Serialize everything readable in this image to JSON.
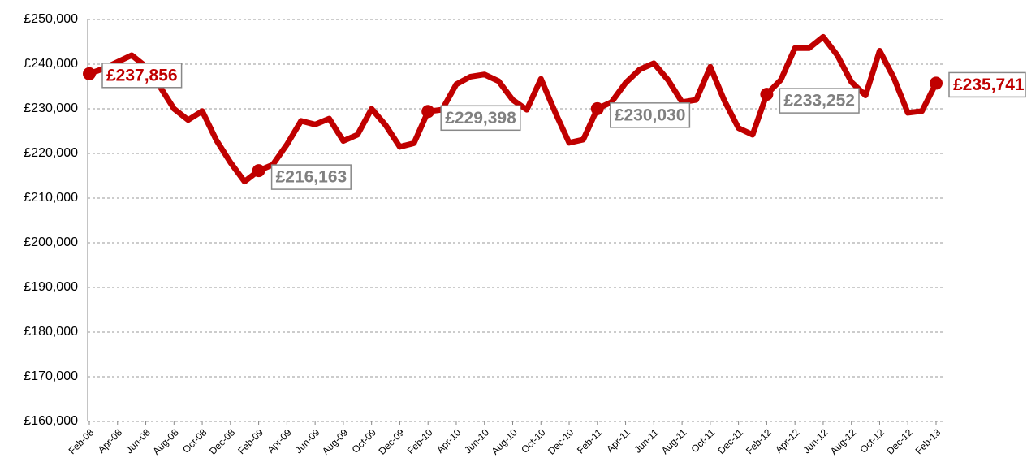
{
  "chart_data": {
    "type": "line",
    "categories": [
      "Feb-08",
      null,
      "Apr-08",
      null,
      "Jun-08",
      null,
      "Aug-08",
      null,
      "Oct-08",
      null,
      "Dec-08",
      null,
      "Feb-09",
      null,
      "Apr-09",
      null,
      "Jun-09",
      null,
      "Aug-09",
      null,
      "Oct-09",
      null,
      "Dec-09",
      null,
      "Feb-10",
      null,
      "Apr-10",
      null,
      "Jun-10",
      null,
      "Aug-10",
      null,
      "Oct-10",
      null,
      "Dec-10",
      null,
      "Feb-11",
      null,
      "Apr-11",
      null,
      "Jun-11",
      null,
      "Aug-11",
      null,
      "Oct-11",
      null,
      "Dec-11",
      null,
      "Feb-12",
      null,
      "Apr-12",
      null,
      "Jun-12",
      null,
      "Aug-12",
      null,
      "Oct-12",
      null,
      "Dec-12",
      null,
      "Feb-13"
    ],
    "series": [
      {
        "color": "#c00000",
        "values": [
          237856,
          239000,
          240500,
          242000,
          239500,
          235000,
          230000,
          227500,
          229500,
          223000,
          218000,
          213700,
          216163,
          217500,
          222000,
          227300,
          226500,
          227800,
          222800,
          224200,
          230000,
          226300,
          221500,
          222300,
          229398,
          229800,
          235500,
          237200,
          237700,
          236200,
          232000,
          229800,
          236700,
          229300,
          222400,
          223100,
          230030,
          231500,
          235800,
          238800,
          240200,
          236500,
          231500,
          232000,
          239400,
          231800,
          225700,
          224200,
          233252,
          236500,
          243600,
          243600,
          246100,
          242000,
          236000,
          233000,
          243000,
          237000,
          229100,
          229500,
          235741
        ],
        "value_labels": [
          "£237,856",
          null,
          null,
          null,
          null,
          null,
          null,
          null,
          null,
          null,
          null,
          null,
          "£216,163",
          null,
          null,
          null,
          null,
          null,
          null,
          null,
          null,
          null,
          null,
          null,
          "£229,398",
          null,
          null,
          null,
          null,
          null,
          null,
          null,
          null,
          null,
          null,
          null,
          "£230,030",
          null,
          null,
          null,
          null,
          null,
          null,
          null,
          null,
          null,
          null,
          null,
          "£233,252",
          null,
          null,
          null,
          null,
          null,
          null,
          null,
          null,
          null,
          null,
          null,
          "£235,741"
        ]
      }
    ],
    "ylim": [
      160000,
      250000
    ],
    "yticks": [
      {
        "value": 160000,
        "label": "£160,000"
      },
      {
        "value": 170000,
        "label": "£170,000"
      },
      {
        "value": 180000,
        "label": "£180,000"
      },
      {
        "value": 190000,
        "label": "£190,000"
      },
      {
        "value": 200000,
        "label": "£200,000"
      },
      {
        "value": 210000,
        "label": "£210,000"
      },
      {
        "value": 220000,
        "label": "£220,000"
      },
      {
        "value": 230000,
        "label": "£230,000"
      },
      {
        "value": 240000,
        "label": "£240,000"
      },
      {
        "value": 250000,
        "label": "£250,000"
      }
    ],
    "grid": true
  }
}
